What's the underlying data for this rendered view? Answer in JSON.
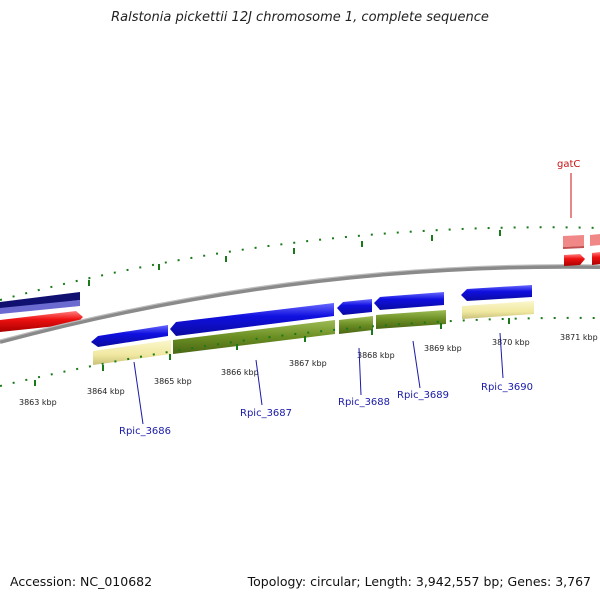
{
  "header": {
    "title": "Ralstonia pickettii 12J chromosome 1, complete sequence"
  },
  "footer": {
    "accession": "Accession: NC_010682",
    "summary": "Topology: circular; Length: 3,942,557 bp; Genes: 3,767"
  },
  "ticks": [
    "3863 kbp",
    "3864 kbp",
    "3865 kbp",
    "3866 kbp",
    "3867 kbp",
    "3868 kbp",
    "3869 kbp",
    "3870 kbp",
    "3871 kbp"
  ],
  "genes": [
    {
      "label": "Rpic_3686",
      "strand": "reverse",
      "color": "#1010e0"
    },
    {
      "label": "Rpic_3687",
      "strand": "reverse",
      "color": "#1010e0"
    },
    {
      "label": "Rpic_3688",
      "strand": "reverse",
      "color": "#1010e0"
    },
    {
      "label": "Rpic_3689",
      "strand": "reverse",
      "color": "#1010e0"
    },
    {
      "label": "Rpic_3690",
      "strand": "reverse",
      "color": "#1010e0"
    },
    {
      "label": "gatC",
      "strand": "forward",
      "color": "#ee1111"
    }
  ],
  "colors": {
    "cds": "#1010e0",
    "rna": "#ee1111",
    "cog_yellow": "#f0e8a0",
    "cog_green": "#6b8e23",
    "cog_pink": "#f08080",
    "backbone": "#888888",
    "tick": "#1a7a1a"
  }
}
